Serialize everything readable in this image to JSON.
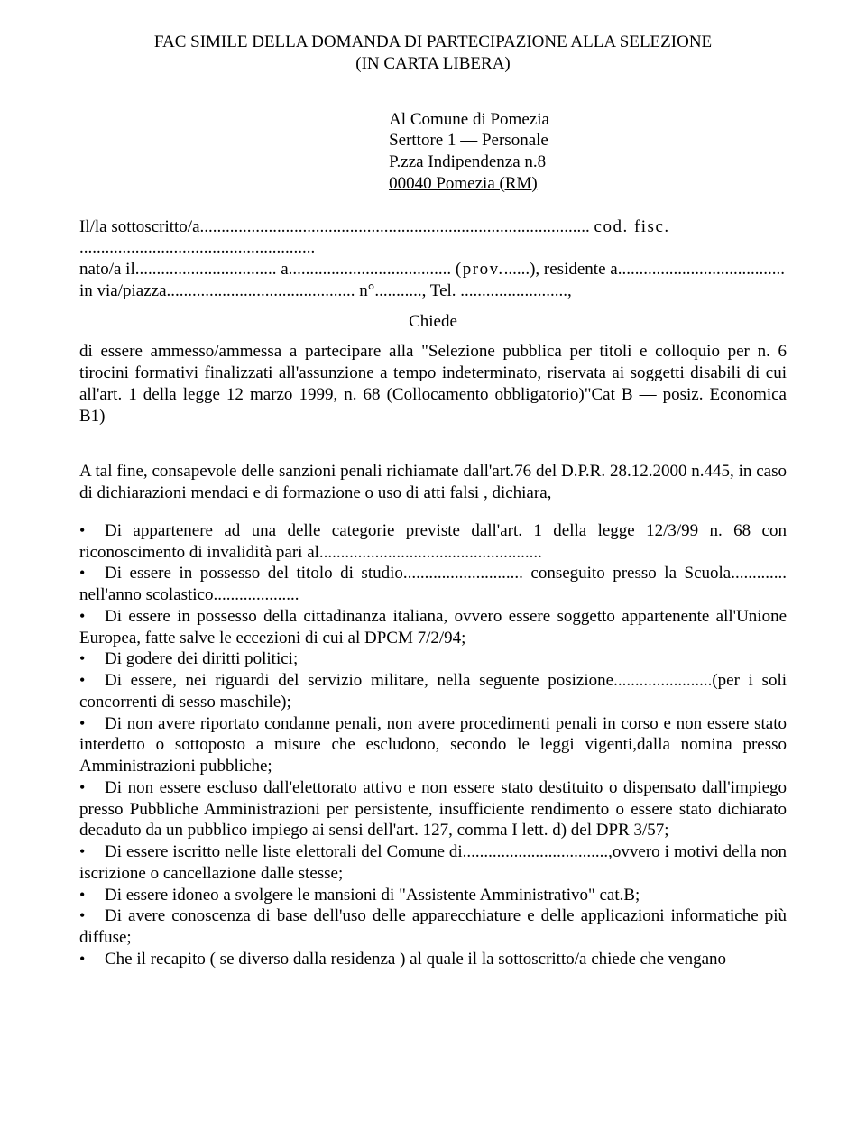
{
  "title_line1": "FAC SIMILE DELLA DOMANDA DI PARTECIPAZIONE ALLA SELEZIONE",
  "title_line2": "(IN CARTA LIBERA)",
  "addr": {
    "l1": "Al Comune di Pomezia",
    "l2": "Serttore 1 — Personale",
    "l3": "P.zza Indipendenza n.8",
    "l4": "00040 Pomezia (RM)"
  },
  "fill_l1a": "Il/la sottoscritto/a",
  "fill_dots1": "...........................................................................................",
  "fill_l1b": "cod. fisc.",
  "fill_dots2": ".......................................................",
  "fill_l2a": "nato/a il",
  "fill_dots3": ".................................",
  "fill_l2b": "a",
  "fill_dots4": "......................................",
  "fill_l2c": "(prov.",
  "fill_dots5": "......",
  "fill_l2d": "), residente a",
  "fill_dots6": ".......................................",
  "fill_l3a": "in via/piazza",
  "fill_dots7": "............................................",
  "fill_l3b": "n°",
  "fill_dots8": "...........",
  "fill_l3c": ", Tel.",
  "fill_dots9": ".........................",
  "fill_l3d": ",",
  "chiede": "Chiede",
  "para1": "di essere ammesso/ammessa a partecipare alla \"Selezione pubblica per titoli e colloquio per n. 6 tirocini formativi finalizzati all'assunzione a tempo indeterminato, riservata ai soggetti disabili di cui all'art. 1 della legge 12 marzo 1999, n. 68 (Collocamento obbligatorio)\"Cat B — posiz. Economica B1)",
  "para2": "A tal fine, consapevole delle sanzioni penali richiamate dall'art.76 del D.P.R. 28.12.2000 n.445, in caso di dichiarazioni mendaci e di formazione o uso di atti falsi , dichiara,",
  "bullets": [
    "Di appartenere ad una delle categorie previste dall'art. 1 della legge 12/3/99 n. 68 con riconoscimento di invalidità pari al....................................................",
    "Di essere in possesso del titolo di studio............................ conseguito presso la Scuola............. nell'anno scolastico....................",
    "Di essere in possesso della cittadinanza italiana, ovvero essere soggetto appartenente all'Unione Europea, fatte salve le eccezioni di cui al DPCM 7/2/94;",
    "Di godere dei diritti politici;",
    "Di essere, nei riguardi del servizio militare, nella seguente posizione.......................(per i soli concorrenti di sesso maschile);",
    "Di non avere riportato condanne penali, non avere procedimenti penali in corso e non essere stato interdetto o sottoposto a misure che escludono, secondo le leggi vigenti,dalla nomina presso Amministrazioni pubbliche;",
    "Di non essere escluso dall'elettorato attivo e non essere stato destituito o dispensato dall'impiego presso Pubbliche Amministrazioni per persistente, insufficiente rendimento o essere stato dichiarato decaduto da un pubblico impiego ai sensi dell'art. 127, comma I lett. d) del DPR 3/57;",
    "Di essere iscritto nelle liste elettorali del Comune di..................................,ovvero i motivi della non iscrizione o cancellazione dalle stesse;",
    "Di essere idoneo a svolgere le mansioni di \"Assistente Amministrativo\" cat.B;",
    "Di avere conoscenza di base dell'uso delle apparecchiature e delle applicazioni informatiche più diffuse;",
    "Che il recapito ( se diverso dalla residenza ) al quale il la sottoscritto/a chiede che vengano"
  ]
}
